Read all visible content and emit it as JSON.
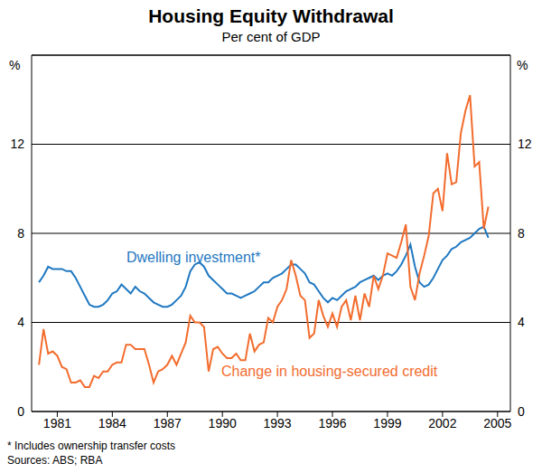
{
  "chart_data": {
    "type": "line",
    "title": "Housing Equity Withdrawal",
    "subtitle": "Per cent of GDP",
    "y_label": "%",
    "y2_label": "%",
    "notes": [
      "* Includes ownership transfer costs",
      "Sources: ABS; RBA"
    ],
    "grid": true,
    "x": [
      1980,
      1980.25,
      1980.5,
      1980.75,
      1981,
      1981.25,
      1981.5,
      1981.75,
      1982,
      1982.25,
      1982.5,
      1982.75,
      1983,
      1983.25,
      1983.5,
      1983.75,
      1984,
      1984.25,
      1984.5,
      1984.75,
      1985,
      1985.25,
      1985.5,
      1985.75,
      1986,
      1986.25,
      1986.5,
      1986.75,
      1987,
      1987.25,
      1987.5,
      1987.75,
      1988,
      1988.25,
      1988.5,
      1988.75,
      1989,
      1989.25,
      1989.5,
      1989.75,
      1990,
      1990.25,
      1990.5,
      1990.75,
      1991,
      1991.25,
      1991.5,
      1991.75,
      1992,
      1992.25,
      1992.5,
      1992.75,
      1993,
      1993.25,
      1993.5,
      1993.75,
      1994,
      1994.25,
      1994.5,
      1994.75,
      1995,
      1995.25,
      1995.5,
      1995.75,
      1996,
      1996.25,
      1996.5,
      1996.75,
      1997,
      1997.25,
      1997.5,
      1997.75,
      1998,
      1998.25,
      1998.5,
      1998.75,
      1999,
      1999.25,
      1999.5,
      1999.75,
      2000,
      2000.25,
      2000.5,
      2000.75,
      2001,
      2001.25,
      2001.5,
      2001.75,
      2002,
      2002.25,
      2002.5,
      2002.75,
      2003,
      2003.25,
      2003.5,
      2003.75,
      2004,
      2004.25,
      2004.5
    ],
    "series": [
      {
        "name": "Dwelling investment*",
        "color": "#1f78c1",
        "values": [
          5.8,
          6.1,
          6.5,
          6.4,
          6.4,
          6.4,
          6.3,
          6.3,
          6.0,
          5.6,
          5.2,
          4.8,
          4.7,
          4.7,
          4.8,
          5.0,
          5.3,
          5.4,
          5.7,
          5.5,
          5.3,
          5.6,
          5.4,
          5.3,
          5.1,
          4.9,
          4.8,
          4.7,
          4.7,
          4.8,
          5.0,
          5.2,
          5.6,
          6.3,
          6.6,
          6.7,
          6.5,
          6.1,
          5.9,
          5.7,
          5.5,
          5.3,
          5.3,
          5.2,
          5.1,
          5.2,
          5.3,
          5.4,
          5.6,
          5.8,
          5.8,
          6.0,
          6.1,
          6.2,
          6.4,
          6.6,
          6.6,
          6.4,
          6.2,
          5.8,
          5.7,
          5.4,
          5.1,
          4.9,
          5.1,
          5.0,
          5.2,
          5.4,
          5.5,
          5.6,
          5.8,
          5.9,
          6.0,
          6.1,
          5.9,
          6.1,
          6.2,
          6.1,
          6.3,
          6.6,
          7.0,
          7.5,
          6.5,
          5.8,
          5.6,
          5.7,
          6.0,
          6.4,
          6.8,
          7.0,
          7.3,
          7.4,
          7.6,
          7.7,
          7.8,
          8.0,
          8.2,
          8.3,
          7.8
        ]
      },
      {
        "name": "Change in housing-secured credit",
        "color": "#f26c2e",
        "values": [
          2.1,
          3.7,
          2.6,
          2.7,
          2.5,
          2.0,
          1.9,
          1.3,
          1.3,
          1.4,
          1.1,
          1.1,
          1.6,
          1.5,
          1.8,
          1.8,
          2.1,
          2.2,
          2.2,
          3.0,
          3.0,
          2.8,
          2.8,
          2.8,
          2.1,
          1.3,
          1.8,
          1.9,
          2.1,
          2.5,
          2.1,
          2.6,
          3.1,
          4.3,
          4.0,
          4.0,
          3.8,
          1.8,
          2.8,
          2.9,
          2.6,
          2.4,
          2.4,
          2.6,
          2.3,
          2.3,
          3.5,
          2.7,
          3.0,
          3.1,
          4.2,
          4.0,
          4.7,
          5.0,
          5.5,
          6.8,
          6.1,
          5.2,
          5.0,
          3.3,
          3.5,
          5.0,
          4.3,
          3.8,
          4.4,
          3.8,
          4.7,
          5.0,
          4.1,
          5.2,
          4.1,
          5.3,
          4.7,
          6.1,
          5.5,
          6.1,
          7.1,
          7.0,
          6.9,
          7.6,
          8.4,
          5.6,
          5.0,
          6.2,
          7.0,
          7.9,
          9.8,
          10.0,
          9.0,
          11.6,
          10.2,
          10.3,
          12.5,
          13.5,
          14.2,
          11.0,
          11.2,
          8.2,
          9.2
        ]
      }
    ],
    "xlim": [
      1979.6,
      2005.7
    ],
    "xticks": [
      1981,
      1984,
      1987,
      1990,
      1993,
      1996,
      1999,
      2002,
      2005
    ],
    "ylim": [
      0,
      16
    ],
    "yticks": [
      0,
      4,
      8,
      12
    ],
    "y2lim": [
      0,
      16
    ],
    "y2ticks": [
      0,
      4,
      8,
      12
    ]
  }
}
